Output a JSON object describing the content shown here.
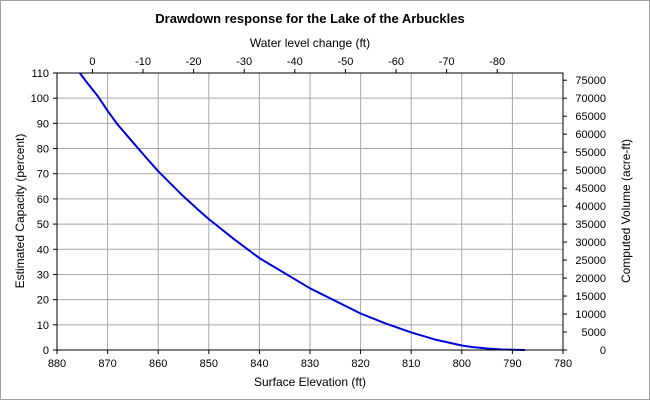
{
  "chart_data": {
    "type": "line",
    "title": "Drawdown response for the Lake of the Arbuckles",
    "xlabel": "Surface Elevation (ft)",
    "ylabel": "Estimated Capacity (percent)",
    "x2label": "Water level change (ft)",
    "y2label": "Computed Volume (acre-ft)",
    "xlim": [
      880,
      780
    ],
    "ylim": [
      0,
      110
    ],
    "x2lim": [
      7,
      -93
    ],
    "y2lim": [
      0,
      77000
    ],
    "xticks": [
      880,
      870,
      860,
      850,
      840,
      830,
      820,
      810,
      800,
      790,
      780
    ],
    "yticks": [
      0,
      10,
      20,
      30,
      40,
      50,
      60,
      70,
      80,
      90,
      100,
      110
    ],
    "x2ticks": [
      0,
      -10,
      -20,
      -30,
      -40,
      -50,
      -60,
      -70,
      -80
    ],
    "y2ticks": [
      0,
      5000,
      10000,
      15000,
      20000,
      25000,
      30000,
      35000,
      40000,
      45000,
      50000,
      55000,
      60000,
      65000,
      70000,
      75000
    ],
    "grid": true,
    "series": [
      {
        "color": "#0000dd",
        "x": [
          875.5,
          874,
          872,
          870,
          868,
          865,
          862,
          860,
          858,
          855,
          852,
          850,
          845,
          840,
          835,
          830,
          825,
          820,
          815,
          810,
          805,
          800,
          798,
          795,
          792,
          789,
          787.5
        ],
        "y": [
          110,
          106,
          101,
          95,
          89.5,
          82.5,
          75.5,
          71,
          67,
          61,
          55.5,
          52,
          44,
          36.5,
          30.5,
          24.5,
          19.5,
          14.5,
          10.5,
          7,
          4,
          1.8,
          1.2,
          0.6,
          0.2,
          0.05,
          0
        ]
      }
    ]
  }
}
